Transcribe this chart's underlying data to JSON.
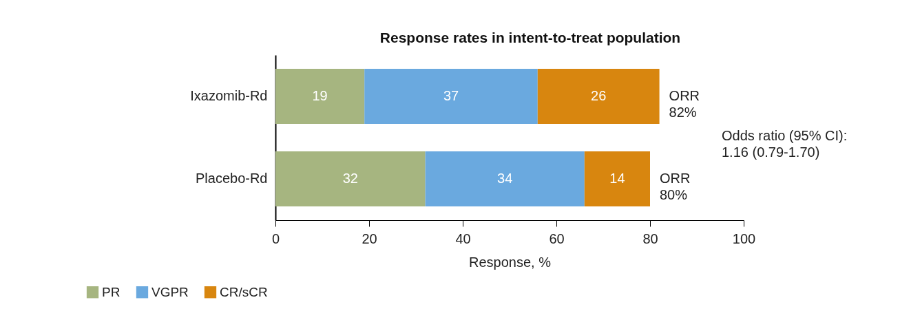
{
  "chart_data": {
    "type": "bar",
    "orientation": "horizontal",
    "stacked": true,
    "title": "Response rates in intent-to-treat population",
    "xlabel": "Response, %",
    "categories": [
      "Ixazomib-Rd",
      "Placebo-Rd"
    ],
    "series": [
      {
        "name": "PR",
        "color": "#a6b580",
        "values": [
          19,
          32
        ]
      },
      {
        "name": "VGPR",
        "color": "#6aa9df",
        "values": [
          37,
          34
        ]
      },
      {
        "name": "CR/sCR",
        "color": "#d8860f",
        "values": [
          26,
          14
        ]
      }
    ],
    "xlim": [
      0,
      100
    ],
    "xticks": [
      0,
      20,
      40,
      60,
      80,
      100
    ],
    "grid": false,
    "legend": "bottom left",
    "data_labels": true,
    "annotations": [
      {
        "text": "ORR\n82%",
        "x": 82,
        "y": "Ixazomib-Rd"
      },
      {
        "text": "ORR\n80%",
        "x": 80,
        "y": "Placebo-Rd"
      },
      "Odds ratio (95% CI):\n1.16 (0.79-1.70)"
    ]
  }
}
